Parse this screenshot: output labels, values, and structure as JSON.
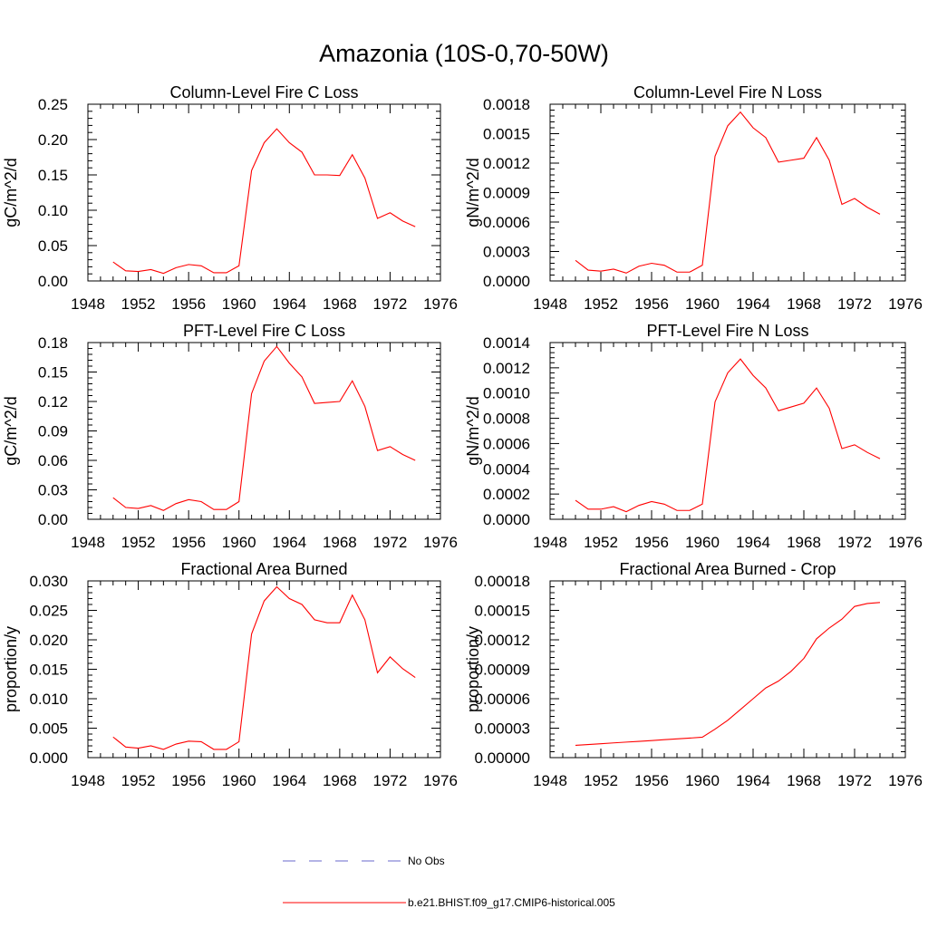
{
  "title": "Amazonia (10S-0,70-50W)",
  "colors": {
    "model_line": "#ff0000",
    "obs_line": "#6a6acd",
    "axis": "#000000"
  },
  "legend": {
    "placement": "bottom-center",
    "entries": [
      {
        "label": "No Obs",
        "style": "dashed",
        "color": "#6a6acd"
      },
      {
        "label": "b.e21.BHIST.f09_g17.CMIP6-historical.005",
        "style": "solid",
        "color": "#ff0000"
      }
    ]
  },
  "chart_data": [
    {
      "type": "line",
      "title": "Column-Level Fire C Loss",
      "ylabel": "gC/m^2/d",
      "xlim": [
        1948,
        1976
      ],
      "ylim": [
        0,
        0.28
      ],
      "xticks": [
        "1948",
        "1952",
        "1956",
        "1960",
        "1964",
        "1968",
        "1972",
        "1976"
      ],
      "yticks": [
        "0.00",
        "0.05",
        "0.10",
        "0.15",
        "0.20",
        "0.25"
      ],
      "x": [
        1950,
        1951,
        1952,
        1953,
        1954,
        1955,
        1956,
        1957,
        1958,
        1959,
        1960,
        1961,
        1962,
        1963,
        1964,
        1965,
        1966,
        1967,
        1968,
        1969,
        1970,
        1971,
        1972,
        1973,
        1974
      ],
      "series": [
        {
          "name": "b.e21.BHIST.f09_g17.CMIP6-historical.005",
          "values": [
            0.03,
            0.016,
            0.015,
            0.018,
            0.012,
            0.021,
            0.026,
            0.024,
            0.013,
            0.013,
            0.024,
            0.175,
            0.219,
            0.241,
            0.219,
            0.204,
            0.168,
            0.168,
            0.167,
            0.2,
            0.163,
            0.099,
            0.108,
            0.095,
            0.086
          ]
        }
      ]
    },
    {
      "type": "line",
      "title": "Column-Level Fire N Loss",
      "ylabel": "gN/m^2/d",
      "xlim": [
        1948,
        1976
      ],
      "ylim": [
        0,
        0.0018
      ],
      "xticks": [
        "1948",
        "1952",
        "1956",
        "1960",
        "1964",
        "1968",
        "1972",
        "1976"
      ],
      "yticks": [
        "0.0000",
        "0.0003",
        "0.0006",
        "0.0009",
        "0.0012",
        "0.0015",
        "0.0018"
      ],
      "x": [
        1950,
        1951,
        1952,
        1953,
        1954,
        1955,
        1956,
        1957,
        1958,
        1959,
        1960,
        1961,
        1962,
        1963,
        1964,
        1965,
        1966,
        1967,
        1968,
        1969,
        1970,
        1971,
        1972,
        1973,
        1974
      ],
      "series": [
        {
          "name": "b.e21.BHIST.f09_g17.CMIP6-historical.005",
          "values": [
            0.00021,
            0.00011,
            0.0001,
            0.00012,
            8e-05,
            0.00015,
            0.00018,
            0.00016,
            9e-05,
            9e-05,
            0.00016,
            0.00127,
            0.00158,
            0.00172,
            0.00156,
            0.00146,
            0.00121,
            0.00123,
            0.00125,
            0.00146,
            0.00123,
            0.00078,
            0.00084,
            0.00075,
            0.00068
          ]
        }
      ]
    },
    {
      "type": "line",
      "title": "PFT-Level Fire C Loss",
      "ylabel": "gC/m^2/d",
      "xlim": [
        1948,
        1976
      ],
      "ylim": [
        0,
        0.18
      ],
      "xticks": [
        "1948",
        "1952",
        "1956",
        "1960",
        "1964",
        "1968",
        "1972",
        "1976"
      ],
      "yticks": [
        "0.00",
        "0.03",
        "0.06",
        "0.09",
        "0.12",
        "0.15",
        "0.18"
      ],
      "x": [
        1950,
        1951,
        1952,
        1953,
        1954,
        1955,
        1956,
        1957,
        1958,
        1959,
        1960,
        1961,
        1962,
        1963,
        1964,
        1965,
        1966,
        1967,
        1968,
        1969,
        1970,
        1971,
        1972,
        1973,
        1974
      ],
      "series": [
        {
          "name": "b.e21.BHIST.f09_g17.CMIP6-historical.005",
          "values": [
            0.022,
            0.012,
            0.011,
            0.014,
            0.009,
            0.016,
            0.02,
            0.018,
            0.01,
            0.01,
            0.018,
            0.128,
            0.161,
            0.176,
            0.159,
            0.145,
            0.118,
            0.119,
            0.12,
            0.141,
            0.115,
            0.07,
            0.074,
            0.066,
            0.06
          ]
        }
      ]
    },
    {
      "type": "line",
      "title": "PFT-Level Fire N Loss",
      "ylabel": "gN/m^2/d",
      "xlim": [
        1948,
        1976
      ],
      "ylim": [
        0,
        0.0014
      ],
      "xticks": [
        "1948",
        "1952",
        "1956",
        "1960",
        "1964",
        "1968",
        "1972",
        "1976"
      ],
      "yticks": [
        "0.0000",
        "0.0002",
        "0.0004",
        "0.0006",
        "0.0008",
        "0.0010",
        "0.0012",
        "0.0014"
      ],
      "x": [
        1950,
        1951,
        1952,
        1953,
        1954,
        1955,
        1956,
        1957,
        1958,
        1959,
        1960,
        1961,
        1962,
        1963,
        1964,
        1965,
        1966,
        1967,
        1968,
        1969,
        1970,
        1971,
        1972,
        1973,
        1974
      ],
      "series": [
        {
          "name": "b.e21.BHIST.f09_g17.CMIP6-historical.005",
          "values": [
            0.00015,
            8e-05,
            8e-05,
            0.0001,
            6e-05,
            0.00011,
            0.00014,
            0.00012,
            7e-05,
            7e-05,
            0.00012,
            0.00093,
            0.00116,
            0.00127,
            0.00114,
            0.00104,
            0.00086,
            0.00089,
            0.00092,
            0.00104,
            0.00088,
            0.00056,
            0.00059,
            0.00053,
            0.00048
          ]
        }
      ]
    },
    {
      "type": "line",
      "title": "Fractional Area Burned",
      "ylabel": "proportion/y",
      "xlim": [
        1948,
        1976
      ],
      "ylim": [
        0,
        0.03
      ],
      "xticks": [
        "1948",
        "1952",
        "1956",
        "1960",
        "1964",
        "1968",
        "1972",
        "1976"
      ],
      "yticks": [
        "0.000",
        "0.005",
        "0.010",
        "0.015",
        "0.020",
        "0.025",
        "0.030"
      ],
      "x": [
        1950,
        1951,
        1952,
        1953,
        1954,
        1955,
        1956,
        1957,
        1958,
        1959,
        1960,
        1961,
        1962,
        1963,
        1964,
        1965,
        1966,
        1967,
        1968,
        1969,
        1970,
        1971,
        1972,
        1973,
        1974
      ],
      "series": [
        {
          "name": "b.e21.BHIST.f09_g17.CMIP6-historical.005",
          "values": [
            0.0035,
            0.0018,
            0.0016,
            0.002,
            0.0014,
            0.0023,
            0.0028,
            0.0027,
            0.0014,
            0.0014,
            0.0027,
            0.021,
            0.0266,
            0.029,
            0.027,
            0.026,
            0.0234,
            0.0229,
            0.0229,
            0.0276,
            0.0234,
            0.0144,
            0.0171,
            0.0151,
            0.0136
          ]
        }
      ]
    },
    {
      "type": "line",
      "title": "Fractional Area Burned - Crop",
      "ylabel": "proportion/y",
      "xlim": [
        1948,
        1976
      ],
      "ylim": [
        0,
        0.00018
      ],
      "xticks": [
        "1948",
        "1952",
        "1956",
        "1960",
        "1964",
        "1968",
        "1972",
        "1976"
      ],
      "yticks": [
        "0.00000",
        "0.00003",
        "0.00006",
        "0.00009",
        "0.00012",
        "0.00015",
        "0.00018"
      ],
      "x": [
        1950,
        1951,
        1952,
        1953,
        1954,
        1955,
        1956,
        1957,
        1958,
        1959,
        1960,
        1961,
        1962,
        1963,
        1964,
        1965,
        1966,
        1967,
        1968,
        1969,
        1970,
        1971,
        1972,
        1973,
        1974
      ],
      "series": [
        {
          "name": "b.e21.BHIST.f09_g17.CMIP6-historical.005",
          "values": [
            1.25e-05,
            1.33e-05,
            1.41e-05,
            1.5e-05,
            1.58e-05,
            1.66e-05,
            1.74e-05,
            1.83e-05,
            1.91e-05,
            1.99e-05,
            2.08e-05,
            2.9e-05,
            3.8e-05,
            4.9e-05,
            6e-05,
            7.1e-05,
            7.8e-05,
            8.8e-05,
            0.000101,
            0.000121,
            0.000132,
            0.000141,
            0.000154,
            0.000157,
            0.000158
          ]
        }
      ]
    }
  ]
}
